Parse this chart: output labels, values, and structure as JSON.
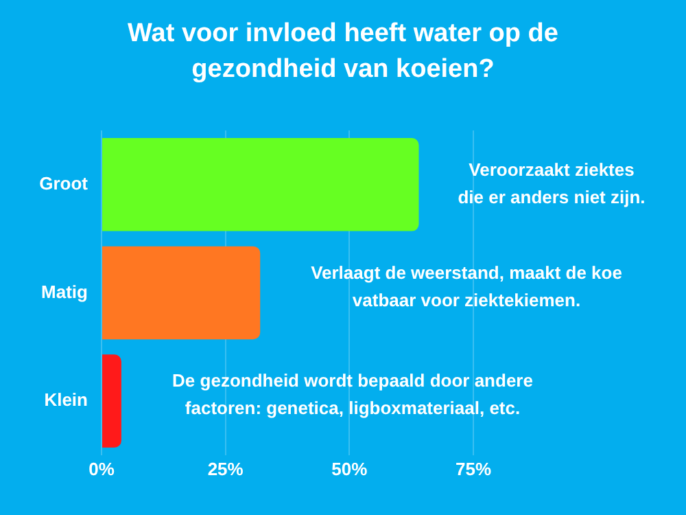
{
  "chart_data": {
    "type": "bar",
    "orientation": "horizontal",
    "title": "Wat voor invloed heeft water op de gezondheid van koeien?",
    "categories": [
      "Groot",
      "Matig",
      "Klein"
    ],
    "values": [
      64,
      32,
      4
    ],
    "colors": [
      "#66ff22",
      "#ff7722",
      "#ff1a1a"
    ],
    "xlim": [
      0,
      75
    ],
    "xticks": [
      {
        "value": 0,
        "label": "0%"
      },
      {
        "value": 25,
        "label": "25%"
      },
      {
        "value": 50,
        "label": "50%"
      },
      {
        "value": 75,
        "label": "75%"
      }
    ],
    "grid": "x",
    "legend": false,
    "annotations": [
      "Veroorzaakt ziektes\ndie er anders niet zijn.",
      "Verlaagt de weerstand, maakt de koe\nvatbaar voor ziektekiemen.",
      "De gezondheid wordt bepaald door andere\nfactoren: genetica, ligboxmateriaal, etc."
    ]
  }
}
